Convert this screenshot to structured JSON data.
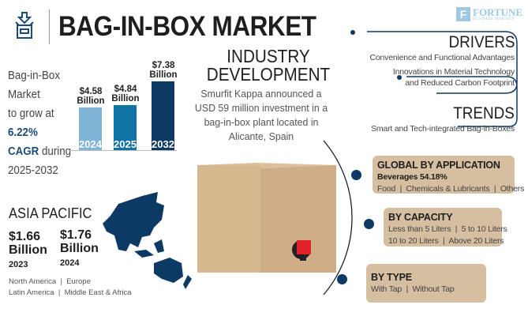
{
  "header": {
    "title": "BAG-IN-BOX MARKET",
    "logo_name": "FORTUNE",
    "logo_sub": "BUSINESS INSIGHTS",
    "icon": "box-download-icon"
  },
  "growth": {
    "line1": "Bag-in-Box",
    "line2": "Market",
    "line3": "to grow at",
    "cagr": "6.22%",
    "cagr_label": "CAGR",
    "during": " during",
    "period": "2025-2032"
  },
  "chart_data": {
    "type": "bar",
    "categories": [
      "2024",
      "2025",
      "2032"
    ],
    "values": [
      4.58,
      4.84,
      7.38
    ],
    "value_labels": [
      [
        "$4.58",
        "Billion"
      ],
      [
        "$4.84",
        "Billion"
      ],
      [
        "$7.38",
        "Billion"
      ]
    ],
    "colors": [
      "#7fb4d6",
      "#0f74a3",
      "#0d3a64"
    ],
    "unit": "USD Billion"
  },
  "industry": {
    "heading1": "INDUSTRY",
    "heading2": "DEVELOPMENT",
    "body": "Smurfit Kappa announced a USD 59 million investment in a bag-in-box plant located in Alicante, Spain"
  },
  "drivers": {
    "heading": "DRIVERS",
    "items": [
      "Convenience and Functional Advantages",
      "Innovations in Material Technology",
      "and Reduced Carbon Footprint"
    ]
  },
  "trends": {
    "heading": "TRENDS",
    "items": [
      "Smart and Tech-integrated Bag-in-Boxes"
    ]
  },
  "application": {
    "heading": "GLOBAL BY APPLICATION",
    "highlight": "Beverages 54.18%",
    "others": "Food  |  Chemicals & Lubricants  |  Others"
  },
  "capacity": {
    "heading": "BY CAPACITY",
    "line1": "Less than 5 Liters  |  5 to 10 Liters",
    "line2": "10 to 20 Liters  |  Above 20 Liters"
  },
  "type": {
    "heading": "BY TYPE",
    "line1": "With Tap  |  Without Tap"
  },
  "region": {
    "name": "ASIA PACIFIC",
    "v1": "$1.66",
    "v1_unit": "Billion",
    "v1_year": "2023",
    "v2": "$1.76",
    "v2_unit": "Billion",
    "v2_year": "2024",
    "others1": "North America  |  Europe",
    "others2": "Latin America  |  Middle East & Africa"
  },
  "colors": {
    "navy": "#0d3a64",
    "tan": "#d6bfa1",
    "box": "#cfae87",
    "tap": "#e0222b"
  }
}
